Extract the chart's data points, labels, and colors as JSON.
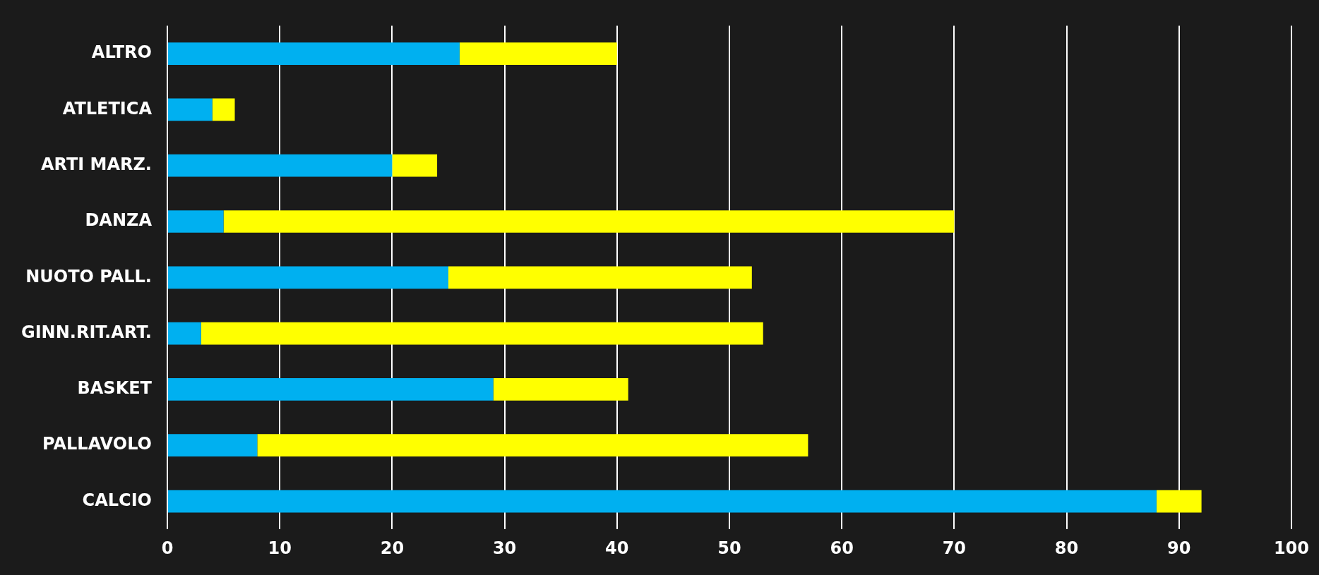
{
  "chart_data": {
    "type": "bar",
    "orientation": "horizontal",
    "stacked": true,
    "categories": [
      "ALTRO",
      "ATLETICA",
      "ARTI MARZ.",
      "DANZA",
      "NUOTO PALL.",
      "GINN.RIT.ART.",
      "BASKET",
      "PALLAVOLO",
      "CALCIO"
    ],
    "series": [
      {
        "color": "#00b0f0",
        "values": [
          26,
          4,
          20,
          5,
          25,
          3,
          29,
          8,
          88
        ]
      },
      {
        "color": "#ffff00",
        "values": [
          14,
          2,
          4,
          65,
          27,
          50,
          12,
          49,
          4
        ]
      }
    ],
    "xlim": [
      0,
      100
    ],
    "xticks": [
      0,
      10,
      20,
      30,
      40,
      50,
      60,
      70,
      80,
      90,
      100
    ],
    "grid": "x"
  }
}
